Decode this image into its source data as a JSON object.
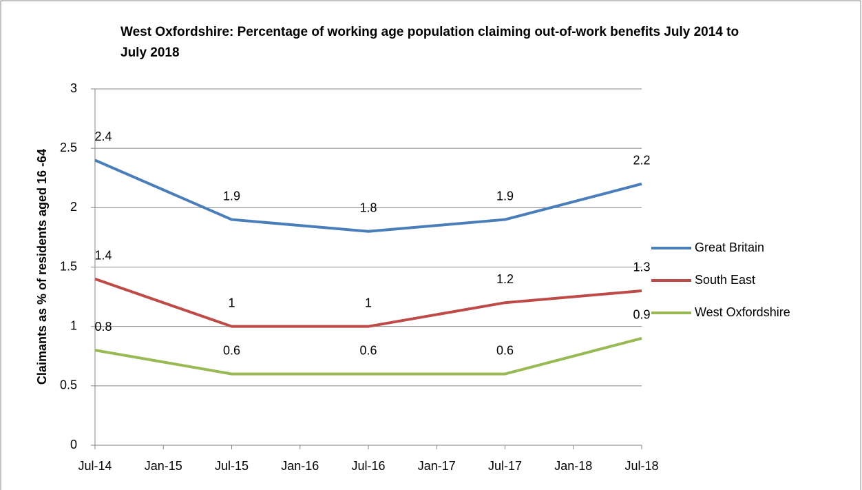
{
  "chart_data": {
    "type": "line",
    "title": "West Oxfordshire: Percentage of working age population claiming out-of-work benefits July 2014 to July 2018",
    "y_label": "Claimants as % of residents aged 16 -64",
    "x": [
      "Jul-14",
      "Jul-15",
      "Jul-16",
      "Jul-17",
      "Jul-18"
    ],
    "xticks": [
      "Jul-14",
      "Jan-15",
      "Jul-15",
      "Jan-16",
      "Jul-16",
      "Jan-17",
      "Jul-17",
      "Jan-18",
      "Jul-18"
    ],
    "ylim": [
      0,
      3
    ],
    "yticks": [
      0,
      0.5,
      1,
      1.5,
      2,
      2.5,
      3
    ],
    "grid": true,
    "legend": "right",
    "series": [
      {
        "name": "Great Britain",
        "color": "#4a7ebb",
        "values": [
          2.4,
          1.9,
          1.8,
          1.9,
          2.2
        ]
      },
      {
        "name": "South East",
        "color": "#be4b48",
        "values": [
          1.4,
          1,
          1,
          1.2,
          1.3
        ]
      },
      {
        "name": "West Oxfordshire",
        "color": "#98b954",
        "values": [
          0.8,
          0.6,
          0.6,
          0.6,
          0.9
        ]
      }
    ]
  }
}
